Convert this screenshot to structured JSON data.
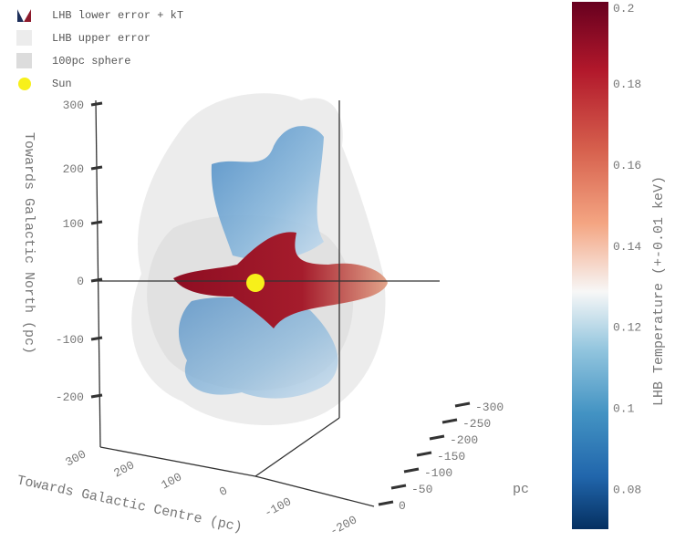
{
  "chart_data": {
    "type": "3d-isosurface",
    "legend": {
      "placement": "top-left",
      "entries": [
        {
          "label": "LHB lower error + kT",
          "icon": "colorscale-surface-icon"
        },
        {
          "label": "LHB upper error",
          "color": "#ececec"
        },
        {
          "label": "100pc sphere",
          "color": "#dcdcdc"
        },
        {
          "label": "Sun",
          "color": "#f7f01a"
        }
      ]
    },
    "axes": {
      "z": {
        "label": "Towards Galactic North (pc)",
        "ticks": [
          "300",
          "200",
          "100",
          "0",
          "-100",
          "-200"
        ]
      },
      "x": {
        "label": "Towards Galactic Centre (pc)",
        "ticks": [
          "300",
          "200",
          "100",
          "0",
          "-100",
          "-200"
        ]
      },
      "y": {
        "label": "pc",
        "ticks": [
          "0",
          "-50",
          "-100",
          "-150",
          "-200",
          "-250",
          "-300"
        ]
      }
    },
    "colorbar": {
      "title": "LHB Temperature (+-0.01 keV)",
      "range": [
        0.07,
        0.2
      ],
      "ticks": [
        "0.2",
        "0.18",
        "0.16",
        "0.14",
        "0.12",
        "0.1",
        "0.08"
      ],
      "tick_values": [
        0.2,
        0.18,
        0.16,
        0.14,
        0.12,
        0.1,
        0.08
      ],
      "colorscale": [
        "#67001f",
        "#b2182b",
        "#d6604d",
        "#f4a582",
        "#f7f7f7",
        "#92c5de",
        "#4393c3",
        "#2166ac",
        "#053061"
      ]
    },
    "sun": {
      "position": [
        0,
        0,
        0
      ],
      "color": "#f7f01a"
    }
  }
}
